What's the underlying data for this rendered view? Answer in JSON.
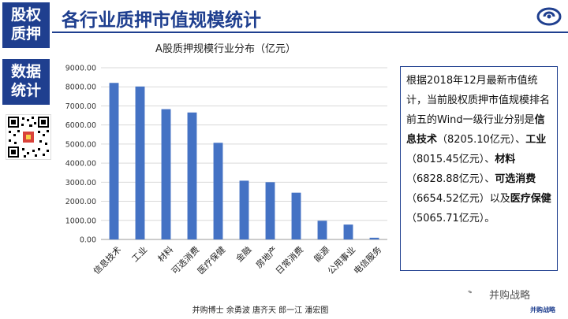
{
  "sidebar": {
    "block1": [
      "股权",
      "质押"
    ],
    "block2": [
      "数据",
      "统计"
    ]
  },
  "header": {
    "title": "各行业质押市值规模统计"
  },
  "chart_data": {
    "type": "bar",
    "title": "A股质押规模行业分布（亿元）",
    "categories": [
      "信息技术",
      "工业",
      "材料",
      "可选消费",
      "医疗保健",
      "金融",
      "房地产",
      "日常消费",
      "能源",
      "公用事业",
      "电信服务"
    ],
    "values": [
      8205.1,
      8015.45,
      6828.88,
      6654.52,
      5065.71,
      3080,
      3000,
      2450,
      980,
      780,
      90
    ],
    "ylim": [
      0,
      9000
    ],
    "yticks": [
      "0.00",
      "1000.00",
      "2000.00",
      "3000.00",
      "4000.00",
      "5000.00",
      "6000.00",
      "7000.00",
      "8000.00",
      "9000.00"
    ],
    "xlabel": "",
    "ylabel": "",
    "grid": true,
    "bar_color": "#4472c4"
  },
  "infobox": {
    "t1": "根据2018年12月最新市值统计，当前股权质押市值规模排名前五的Wind一级行业分别是",
    "b1": "信息技术",
    "t2": "（8205.10亿元）、",
    "b2": "工业",
    "t3": "（8015.45亿元）、",
    "b3": "材料",
    "t4": "（6828.88亿元）、",
    "b4": "可选消费",
    "t5": "（6654.52亿元）以及",
    "b5": "医疗保健",
    "t6": "（5065.71亿元）。"
  },
  "footer": {
    "credits": "并购博士 余勇波 唐齐天 郎一江 潘宏图"
  },
  "wechat": {
    "name": "并购战略",
    "sub": "并购战略"
  },
  "colors": {
    "brand": "#1f3f8f",
    "bar": "#4472c4"
  }
}
